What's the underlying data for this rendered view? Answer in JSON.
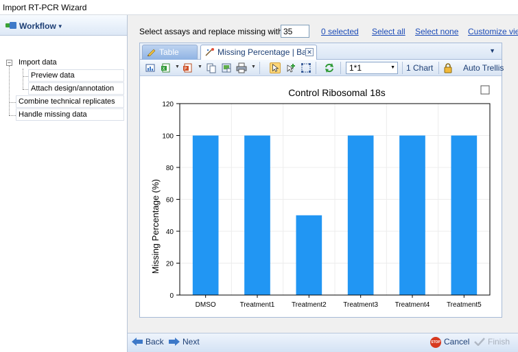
{
  "window": {
    "title": "Import RT-PCR Wizard"
  },
  "workflow": {
    "header": "Workflow",
    "steps": [
      "Import data",
      "Preview data",
      "Attach design/annotation",
      "Combine technical replicates",
      "Handle missing data"
    ]
  },
  "assay_selection": {
    "label": "Select assays and replace missing with",
    "replace_value": "35",
    "selected_count_link": "0 selected",
    "select_all_link": "Select all",
    "select_none_link": "Select none",
    "customize_view_link": "Customize view"
  },
  "tabs": [
    {
      "label": "Table",
      "active": false
    },
    {
      "label": "Missing Percentage | Bar",
      "active": true
    }
  ],
  "toolbar": {
    "layout_value": "1*1",
    "chart_count_label": "1 Chart",
    "auto_trellis_label": "Auto Trellis"
  },
  "chart_data": {
    "type": "bar",
    "title": "Control Ribosomal 18s",
    "categories": [
      "DMSO",
      "Treatment1",
      "Treatment2",
      "Treatment3",
      "Treatment4",
      "Treatment5"
    ],
    "values": [
      100,
      100,
      50,
      100,
      100,
      100
    ],
    "xlabel": "",
    "ylabel": "Missing Percentage (%)",
    "ylim": [
      0,
      120
    ],
    "yticks": [
      0,
      20,
      40,
      60,
      80,
      100,
      120
    ],
    "grid": true,
    "bar_color": "#2196f3"
  },
  "footer": {
    "back_label": "Back",
    "next_label": "Next",
    "cancel_label": "Cancel",
    "finish_label": "Finish"
  },
  "colors": {
    "link": "#1a4ab6",
    "header_text": "#1c3e74",
    "bar": "#2196f3",
    "stop": "#d73a20"
  }
}
